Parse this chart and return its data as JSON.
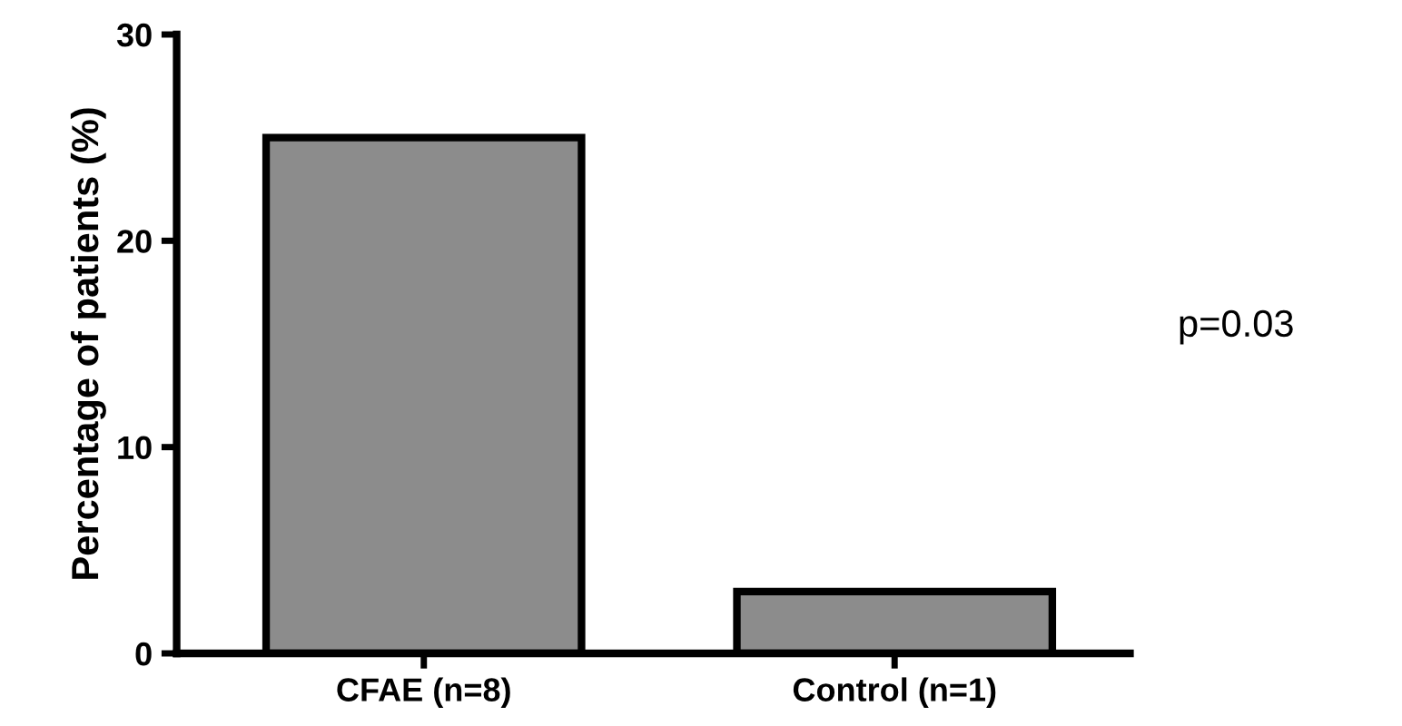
{
  "chart_data": {
    "type": "bar",
    "ylabel": "Percentage of patients (%)",
    "categories": [
      "CFAE (n=8)",
      "Control (n=1)"
    ],
    "values": [
      25,
      3
    ],
    "color": "#8c8c8c",
    "ylim": [
      0,
      30
    ],
    "yticks": [
      0,
      10,
      20,
      30
    ],
    "grid": false,
    "annotations": [
      "p=0.03"
    ]
  }
}
